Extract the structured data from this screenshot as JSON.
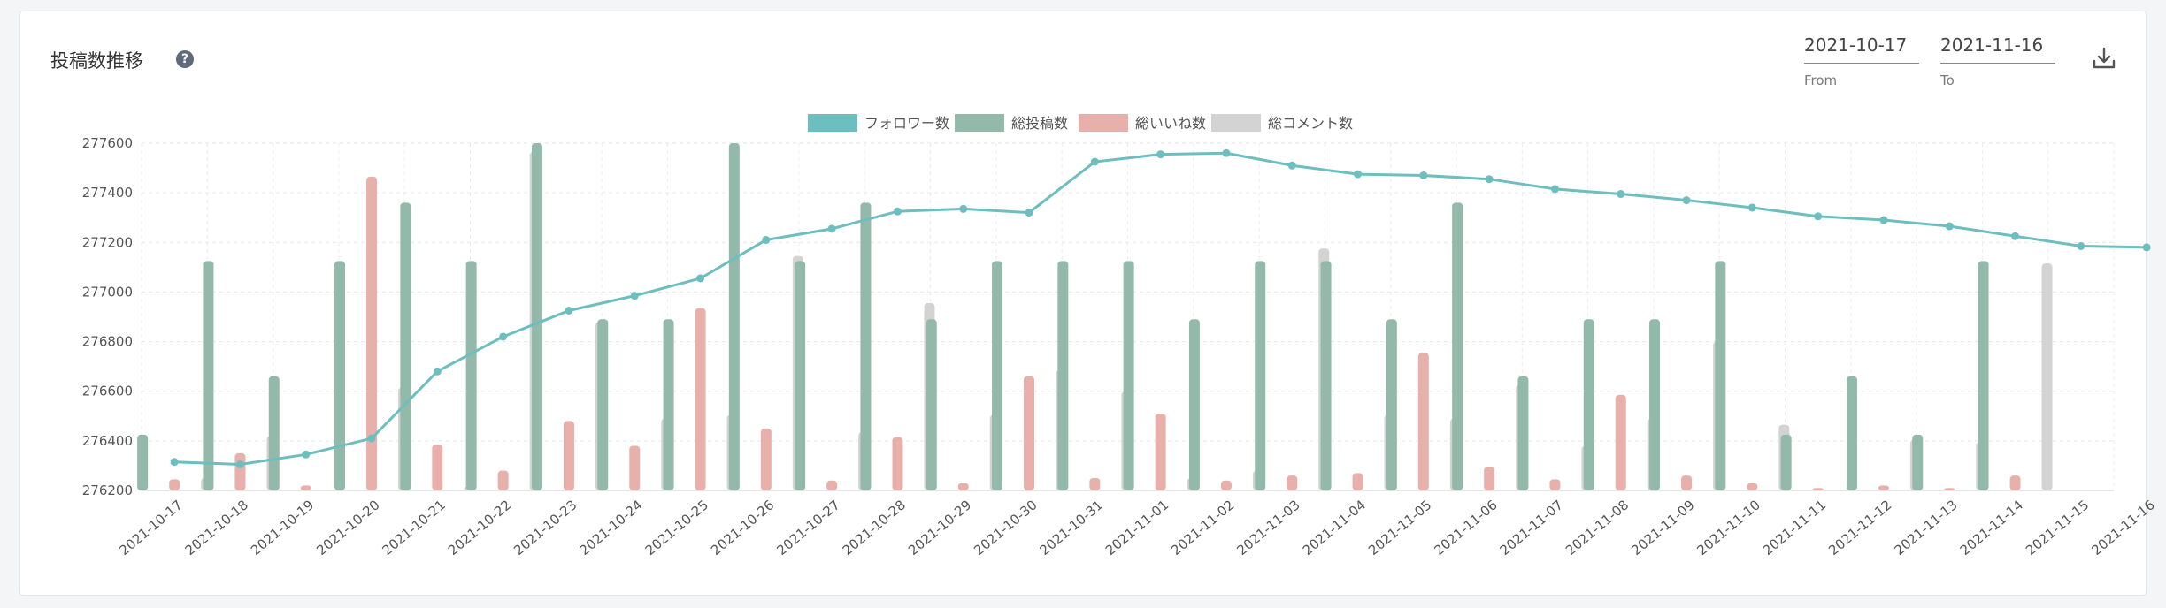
{
  "header": {
    "title": "投稿数推移",
    "help_icon": "?"
  },
  "date_range": {
    "from_value": "2021-10-17",
    "from_label": "From",
    "to_value": "2021-11-16",
    "to_label": "To"
  },
  "colors": {
    "followers": "#6dbfbf",
    "posts": "#93b9aa",
    "likes": "#e8b0aa",
    "comments": "#d3d3d3"
  },
  "chart_data": {
    "type": "bar",
    "title": "",
    "xlabel": "",
    "ylabel": "",
    "ylim": [
      276200,
      277600
    ],
    "yticks": [
      "277600",
      "277400",
      "277200",
      "277000",
      "276800",
      "276600",
      "276400",
      "276200"
    ],
    "grid": true,
    "legend_position": "top-center",
    "categories": [
      "2021-10-17",
      "2021-10-18",
      "2021-10-19",
      "2021-10-20",
      "2021-10-21",
      "2021-10-22",
      "2021-10-23",
      "2021-10-24",
      "2021-10-25",
      "2021-10-26",
      "2021-10-27",
      "2021-10-28",
      "2021-10-29",
      "2021-10-30",
      "2021-10-31",
      "2021-11-01",
      "2021-11-02",
      "2021-11-03",
      "2021-11-04",
      "2021-11-05",
      "2021-11-06",
      "2021-11-07",
      "2021-11-08",
      "2021-11-09",
      "2021-11-10",
      "2021-11-11",
      "2021-11-12",
      "2021-11-13",
      "2021-11-14",
      "2021-11-15",
      "2021-11-16"
    ],
    "series": [
      {
        "name": "フォロワー数",
        "type": "line",
        "values": [
          276315,
          276305,
          276345,
          276410,
          276680,
          276820,
          276925,
          276985,
          277055,
          277210,
          277255,
          277325,
          277335,
          277320,
          277525,
          277555,
          277560,
          277510,
          277475,
          277470,
          277455,
          277415,
          277395,
          277370,
          277340,
          277305,
          277290,
          277265,
          277225,
          277185,
          277180
        ]
      },
      {
        "name": "総投稿数",
        "type": "bar",
        "values": [
          276425,
          277125,
          276660,
          277125,
          277360,
          277125,
          277600,
          276890,
          276890,
          277600,
          277125,
          277360,
          276890,
          277125,
          277125,
          277125,
          276890,
          277125,
          277125,
          276890,
          277360,
          276660,
          276890,
          276890,
          277125,
          276425,
          276660,
          276425,
          277125,
          276200,
          276200
        ]
      },
      {
        "name": "総いいね数",
        "type": "bar",
        "values": [
          276245,
          276350,
          276220,
          277465,
          276385,
          276280,
          276480,
          276380,
          276935,
          276450,
          276240,
          276415,
          276230,
          276660,
          276250,
          276510,
          276240,
          276260,
          276270,
          276755,
          276295,
          276245,
          276585,
          276260,
          276230,
          276210,
          276220,
          276210,
          276260,
          276200,
          276200
        ]
      },
      {
        "name": "総コメント数",
        "type": "bar",
        "values": [
          276250,
          276420,
          276200,
          276615,
          276215,
          277565,
          276880,
          276490,
          276505,
          277145,
          276435,
          276955,
          276505,
          276685,
          276600,
          276250,
          276280,
          277175,
          276505,
          276490,
          276625,
          276380,
          276490,
          276800,
          276465,
          276200,
          276405,
          276395,
          277115,
          276200,
          276200
        ]
      }
    ]
  }
}
